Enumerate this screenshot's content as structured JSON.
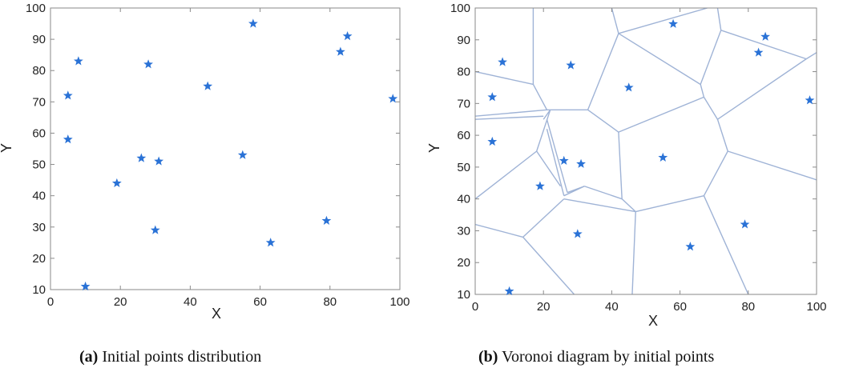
{
  "chart_data": [
    {
      "type": "scatter",
      "xlabel": "X",
      "ylabel": "Y",
      "xlim": [
        0,
        100
      ],
      "ylim": [
        10,
        100
      ],
      "xticks": [
        0,
        20,
        40,
        60,
        80,
        100
      ],
      "yticks": [
        10,
        20,
        30,
        40,
        50,
        60,
        70,
        80,
        90,
        100
      ],
      "grid": false,
      "marker": "star",
      "marker_color": "#2a72d6",
      "caption_label": "(a)",
      "caption_text": " Initial points distribution",
      "points": [
        {
          "x": 5,
          "y": 72
        },
        {
          "x": 5,
          "y": 58
        },
        {
          "x": 8,
          "y": 83
        },
        {
          "x": 10,
          "y": 11
        },
        {
          "x": 19,
          "y": 44
        },
        {
          "x": 26,
          "y": 52
        },
        {
          "x": 28,
          "y": 82
        },
        {
          "x": 31,
          "y": 51
        },
        {
          "x": 30,
          "y": 29
        },
        {
          "x": 45,
          "y": 75
        },
        {
          "x": 55,
          "y": 53
        },
        {
          "x": 58,
          "y": 95
        },
        {
          "x": 63,
          "y": 25
        },
        {
          "x": 79,
          "y": 32
        },
        {
          "x": 83,
          "y": 86
        },
        {
          "x": 85,
          "y": 91
        },
        {
          "x": 98,
          "y": 71
        }
      ]
    },
    {
      "type": "scatter",
      "xlabel": "X",
      "ylabel": "Y",
      "xlim": [
        0,
        100
      ],
      "ylim": [
        10,
        100
      ],
      "xticks": [
        0,
        20,
        40,
        60,
        80,
        100
      ],
      "yticks": [
        10,
        20,
        30,
        40,
        50,
        60,
        70,
        80,
        90,
        100
      ],
      "grid": false,
      "marker": "star",
      "marker_color": "#2a72d6",
      "edge_color": "#9fb3d6",
      "caption_label": "(b)",
      "caption_text": " Voronoi diagram by initial points",
      "points": [
        {
          "x": 5,
          "y": 72
        },
        {
          "x": 5,
          "y": 58
        },
        {
          "x": 8,
          "y": 83
        },
        {
          "x": 10,
          "y": 11
        },
        {
          "x": 19,
          "y": 44
        },
        {
          "x": 26,
          "y": 52
        },
        {
          "x": 28,
          "y": 82
        },
        {
          "x": 31,
          "y": 51
        },
        {
          "x": 30,
          "y": 29
        },
        {
          "x": 45,
          "y": 75
        },
        {
          "x": 55,
          "y": 53
        },
        {
          "x": 58,
          "y": 95
        },
        {
          "x": 63,
          "y": 25
        },
        {
          "x": 79,
          "y": 32
        },
        {
          "x": 83,
          "y": 86
        },
        {
          "x": 85,
          "y": 91
        },
        {
          "x": 98,
          "y": 71
        }
      ],
      "voronoi_edges": [
        [
          [
            0,
            80
          ],
          [
            17,
            76
          ]
        ],
        [
          [
            17,
            76
          ],
          [
            17,
            100
          ]
        ],
        [
          [
            17,
            76
          ],
          [
            21,
            68
          ]
        ],
        [
          [
            21,
            68
          ],
          [
            0,
            66
          ]
        ],
        [
          [
            21,
            68
          ],
          [
            33,
            68
          ]
        ],
        [
          [
            33,
            68
          ],
          [
            42,
            92
          ]
        ],
        [
          [
            42,
            92
          ],
          [
            40,
            100
          ]
        ],
        [
          [
            42,
            92
          ],
          [
            68,
            100
          ]
        ],
        [
          [
            33,
            68
          ],
          [
            42,
            61
          ]
        ],
        [
          [
            42,
            61
          ],
          [
            43,
            40
          ]
        ],
        [
          [
            43,
            40
          ],
          [
            32,
            44
          ]
        ],
        [
          [
            32,
            44
          ],
          [
            27,
            42
          ]
        ],
        [
          [
            27,
            42
          ],
          [
            21,
            65
          ]
        ],
        [
          [
            32,
            44
          ],
          [
            26,
            41
          ]
        ],
        [
          [
            26,
            41
          ],
          [
            21,
            62
          ]
        ],
        [
          [
            20,
            66
          ],
          [
            0,
            65
          ]
        ],
        [
          [
            20,
            65
          ],
          [
            22,
            68
          ]
        ],
        [
          [
            18,
            55
          ],
          [
            0,
            40
          ]
        ],
        [
          [
            18,
            55
          ],
          [
            25,
            44
          ]
        ],
        [
          [
            18,
            55
          ],
          [
            22,
            68
          ]
        ],
        [
          [
            43,
            40
          ],
          [
            47,
            36
          ]
        ],
        [
          [
            47,
            36
          ],
          [
            46,
            10
          ]
        ],
        [
          [
            47,
            36
          ],
          [
            67,
            41
          ]
        ],
        [
          [
            67,
            41
          ],
          [
            80,
            10
          ]
        ],
        [
          [
            67,
            41
          ],
          [
            74,
            55
          ]
        ],
        [
          [
            74,
            55
          ],
          [
            100,
            46
          ]
        ],
        [
          [
            74,
            55
          ],
          [
            71,
            65
          ]
        ],
        [
          [
            71,
            65
          ],
          [
            67,
            72
          ]
        ],
        [
          [
            67,
            72
          ],
          [
            42,
            61
          ]
        ],
        [
          [
            67,
            72
          ],
          [
            66,
            76
          ]
        ],
        [
          [
            66,
            76
          ],
          [
            42,
            92
          ]
        ],
        [
          [
            66,
            76
          ],
          [
            72,
            93
          ]
        ],
        [
          [
            72,
            93
          ],
          [
            71,
            100
          ]
        ],
        [
          [
            72,
            93
          ],
          [
            97,
            84
          ]
        ],
        [
          [
            97,
            84
          ],
          [
            100,
            86
          ]
        ],
        [
          [
            97,
            84
          ],
          [
            71,
            65
          ]
        ],
        [
          [
            26,
            40
          ],
          [
            14,
            28
          ]
        ],
        [
          [
            14,
            28
          ],
          [
            0,
            32
          ]
        ],
        [
          [
            14,
            28
          ],
          [
            29,
            10
          ]
        ],
        [
          [
            26,
            40
          ],
          [
            47,
            36
          ]
        ]
      ]
    }
  ]
}
